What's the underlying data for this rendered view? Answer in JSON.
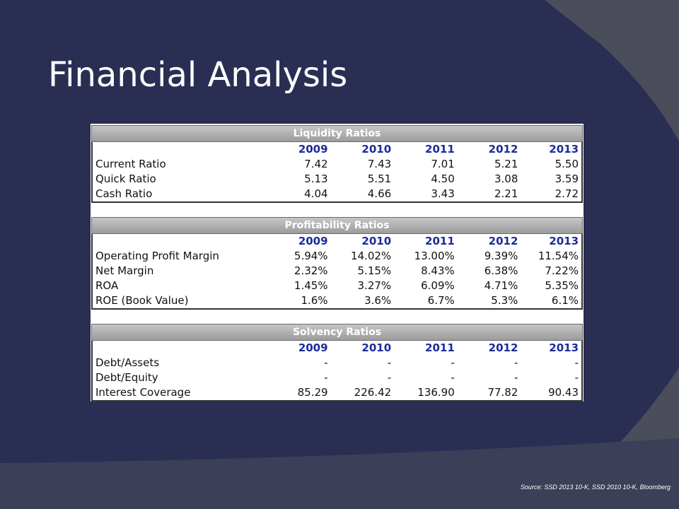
{
  "slide": {
    "title": "Financial Analysis",
    "source": "Source: SSD 2013 10-K, SSD 2010 10-K, Bloomberg"
  },
  "years": [
    "2009",
    "2010",
    "2011",
    "2012",
    "2013"
  ],
  "sections": [
    {
      "header": "Liquidity Ratios",
      "rows": [
        {
          "label": "Current Ratio",
          "values": [
            "7.42",
            "7.43",
            "7.01",
            "5.21",
            "5.50"
          ]
        },
        {
          "label": "Quick Ratio",
          "values": [
            "5.13",
            "5.51",
            "4.50",
            "3.08",
            "3.59"
          ]
        },
        {
          "label": "Cash Ratio",
          "values": [
            "4.04",
            "4.66",
            "3.43",
            "2.21",
            "2.72"
          ]
        }
      ]
    },
    {
      "header": "Profitability Ratios",
      "rows": [
        {
          "label": "Operating Profit Margin",
          "values": [
            "5.94%",
            "14.02%",
            "13.00%",
            "9.39%",
            "11.54%"
          ]
        },
        {
          "label": "Net Margin",
          "values": [
            "2.32%",
            "5.15%",
            "8.43%",
            "6.38%",
            "7.22%"
          ]
        },
        {
          "label": "ROA",
          "values": [
            "1.45%",
            "3.27%",
            "6.09%",
            "4.71%",
            "5.35%"
          ]
        },
        {
          "label": "ROE (Book Value)",
          "values": [
            "1.6%",
            "3.6%",
            "6.7%",
            "5.3%",
            "6.1%"
          ]
        }
      ]
    },
    {
      "header": "Solvency Ratios",
      "rows": [
        {
          "label": "",
          "values": [
            "",
            "",
            "",
            "",
            ""
          ]
        },
        {
          "label": "Debt/Assets",
          "values": [
            "-",
            "-",
            "-",
            "-",
            "-"
          ]
        },
        {
          "label": "Debt/Equity",
          "values": [
            "-",
            "-",
            "-",
            "-",
            "-"
          ]
        },
        {
          "label": "Interest Coverage",
          "values": [
            "85.29",
            "226.42",
            "136.90",
            "77.82",
            "90.43"
          ]
        }
      ]
    }
  ],
  "colors": {
    "background": "#2a2e53",
    "stripe": "#4a4d59",
    "year_text": "#1a2b9c",
    "header_fill": "#b0b0b0"
  }
}
